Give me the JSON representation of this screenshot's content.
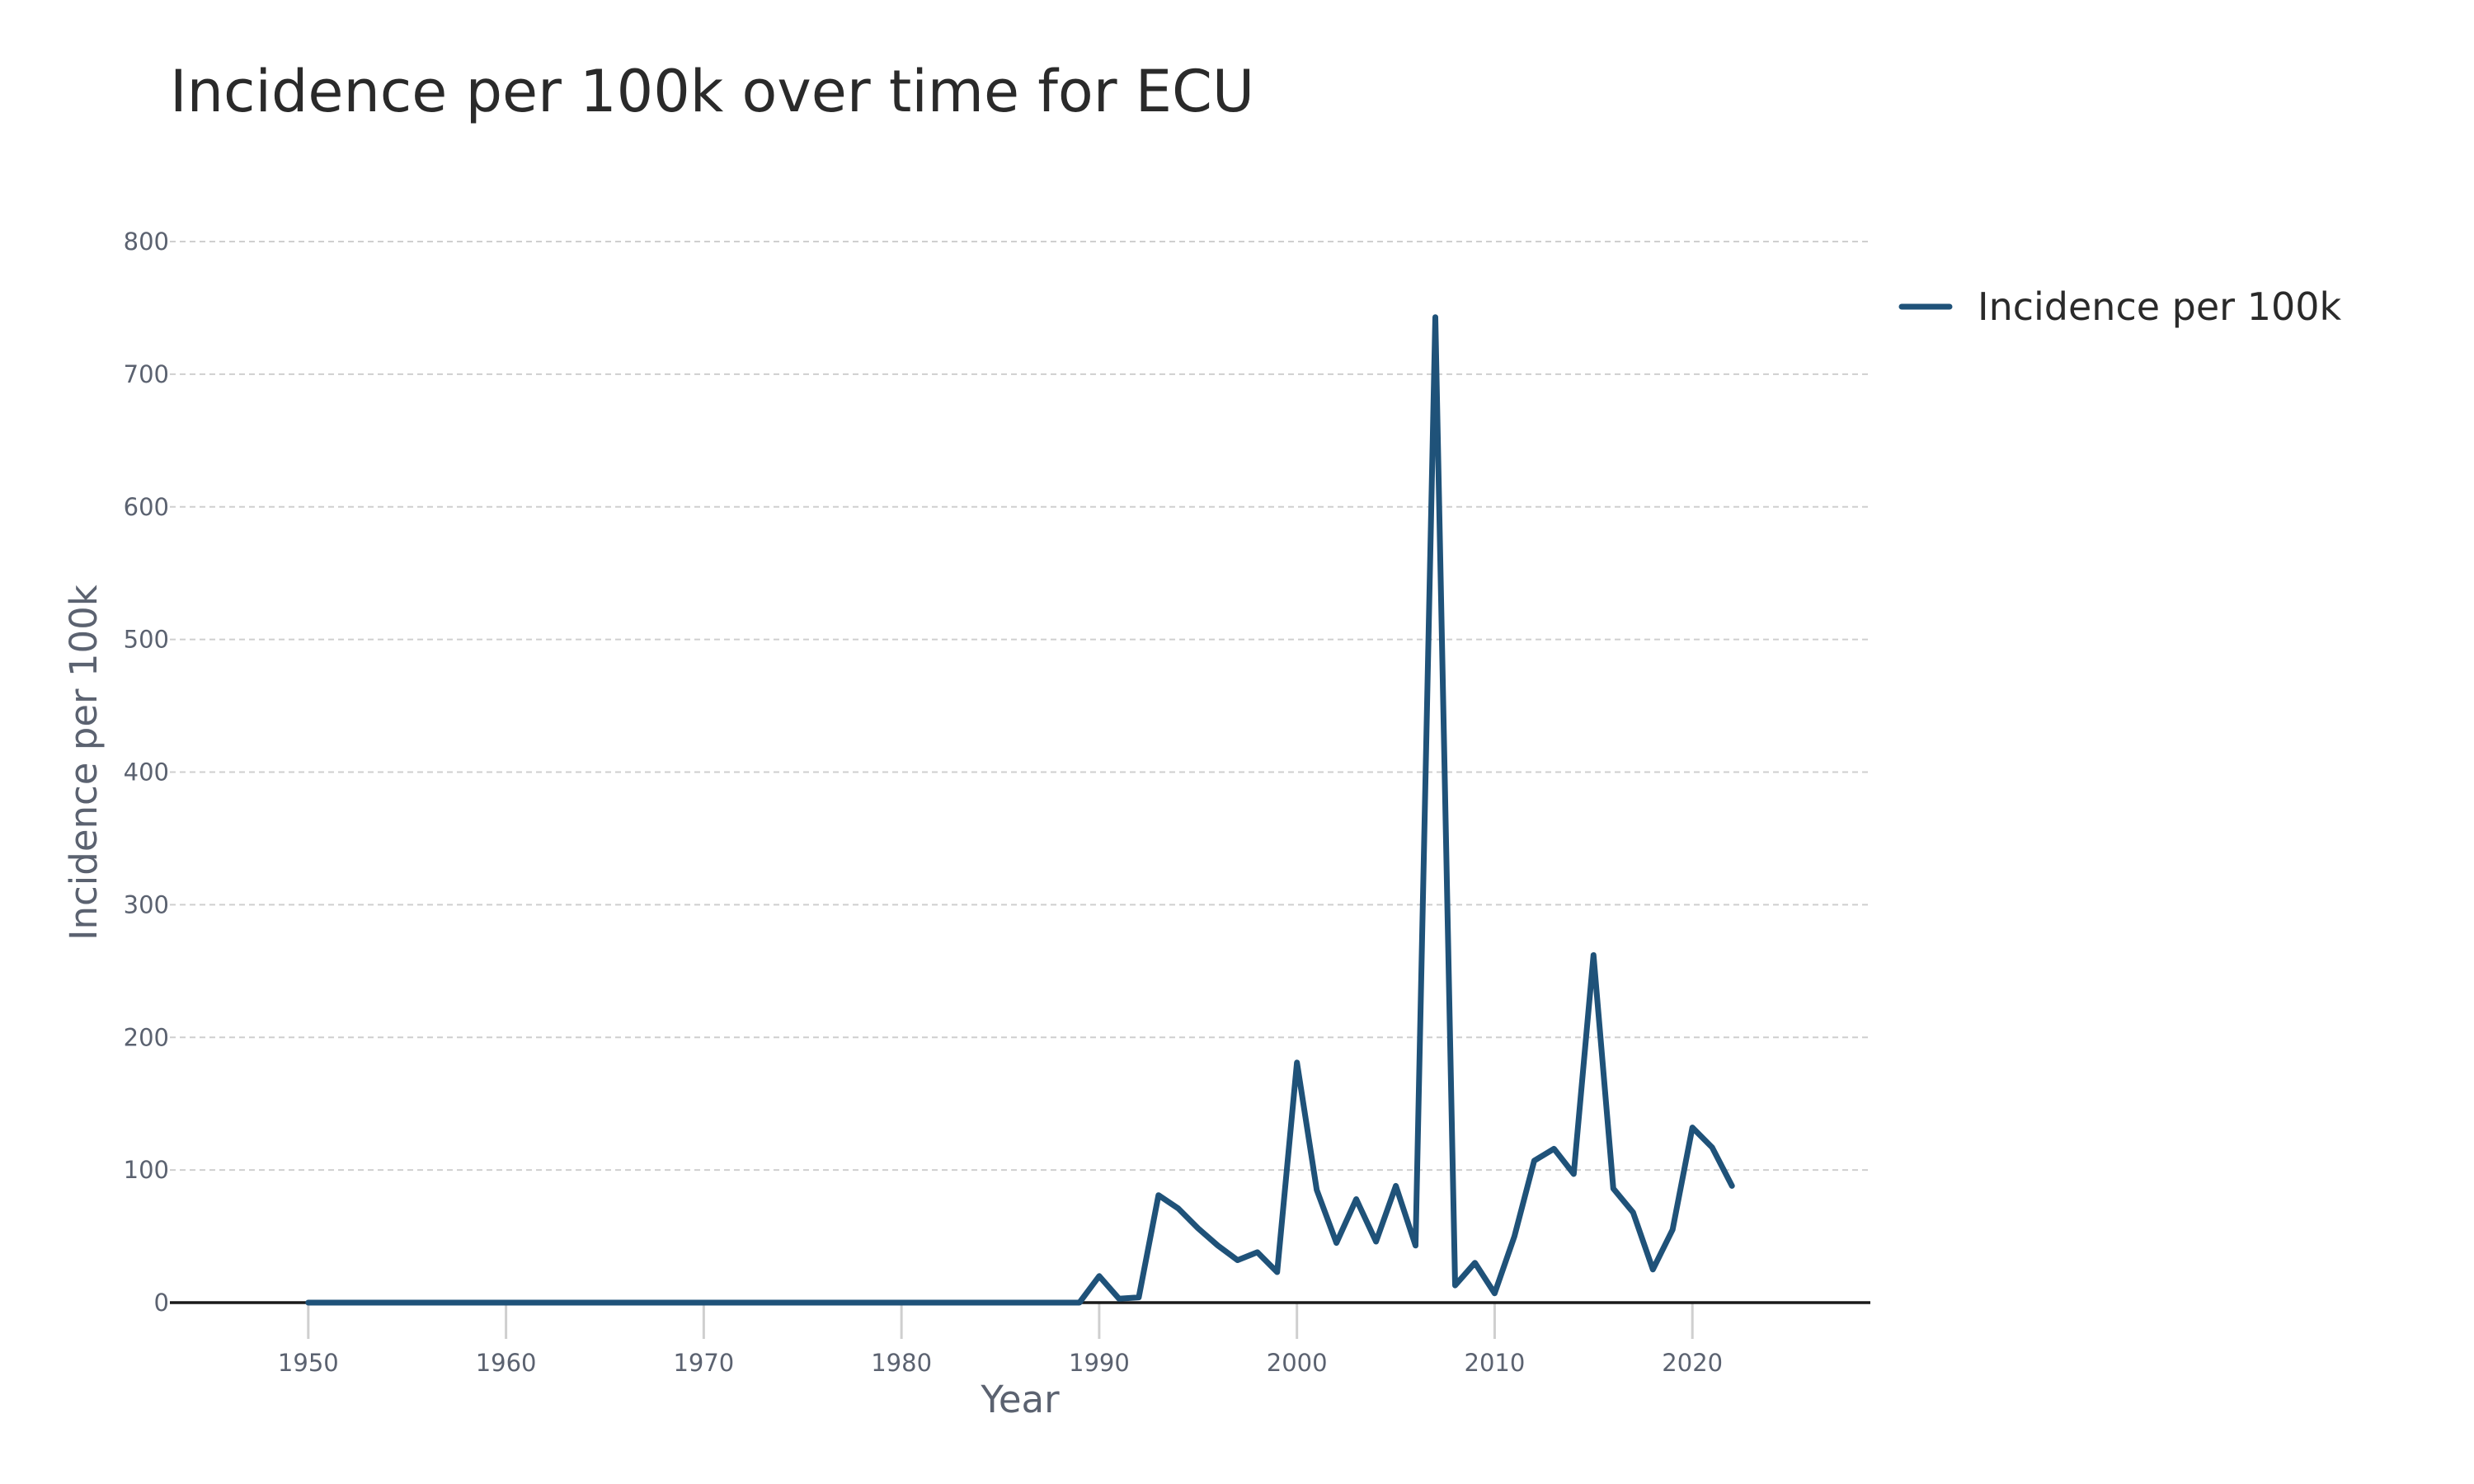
{
  "page": {
    "background": "#ffffff"
  },
  "chart_data": {
    "type": "line",
    "title": "Incidence per 100k over time for ECU",
    "xlabel": "Year",
    "ylabel": "Incidence per 100k",
    "xlim": [
      1943,
      2029
    ],
    "ylim": [
      0,
      800
    ],
    "x_ticks": [
      1950,
      1960,
      1970,
      1980,
      1990,
      2000,
      2010,
      2020
    ],
    "y_ticks": [
      0,
      100,
      200,
      300,
      400,
      500,
      600,
      700,
      800
    ],
    "grid": true,
    "legend_position": "top-right",
    "series": [
      {
        "name": "Incidence per 100k",
        "color": "#1f5279",
        "x": [
          1950,
          1951,
          1952,
          1953,
          1954,
          1955,
          1956,
          1957,
          1958,
          1959,
          1960,
          1961,
          1962,
          1963,
          1964,
          1965,
          1966,
          1967,
          1968,
          1969,
          1970,
          1971,
          1972,
          1973,
          1974,
          1975,
          1976,
          1977,
          1978,
          1979,
          1980,
          1981,
          1982,
          1983,
          1984,
          1985,
          1986,
          1987,
          1988,
          1989,
          1990,
          1991,
          1992,
          1993,
          1994,
          1995,
          1996,
          1997,
          1998,
          1999,
          2000,
          2001,
          2002,
          2003,
          2004,
          2005,
          2006,
          2007,
          2008,
          2009,
          2010,
          2011,
          2012,
          2013,
          2014,
          2015,
          2016,
          2017,
          2018,
          2019,
          2020,
          2021,
          2022
        ],
        "values": [
          0,
          0,
          0,
          0,
          0,
          0,
          0,
          0,
          0,
          0,
          0,
          0,
          0,
          0,
          0,
          0,
          0,
          0,
          0,
          0,
          0,
          0,
          0,
          0,
          0,
          0,
          0,
          0,
          0,
          0,
          0,
          0,
          0,
          0,
          0,
          0,
          0,
          0,
          0,
          0,
          20,
          3,
          4,
          81,
          71,
          56,
          43,
          32,
          38,
          23,
          181,
          85,
          45,
          78,
          46,
          88,
          43,
          743,
          13,
          30,
          7,
          50,
          107,
          116,
          97,
          262,
          86,
          68,
          25,
          55,
          132,
          117,
          88
        ]
      }
    ]
  }
}
